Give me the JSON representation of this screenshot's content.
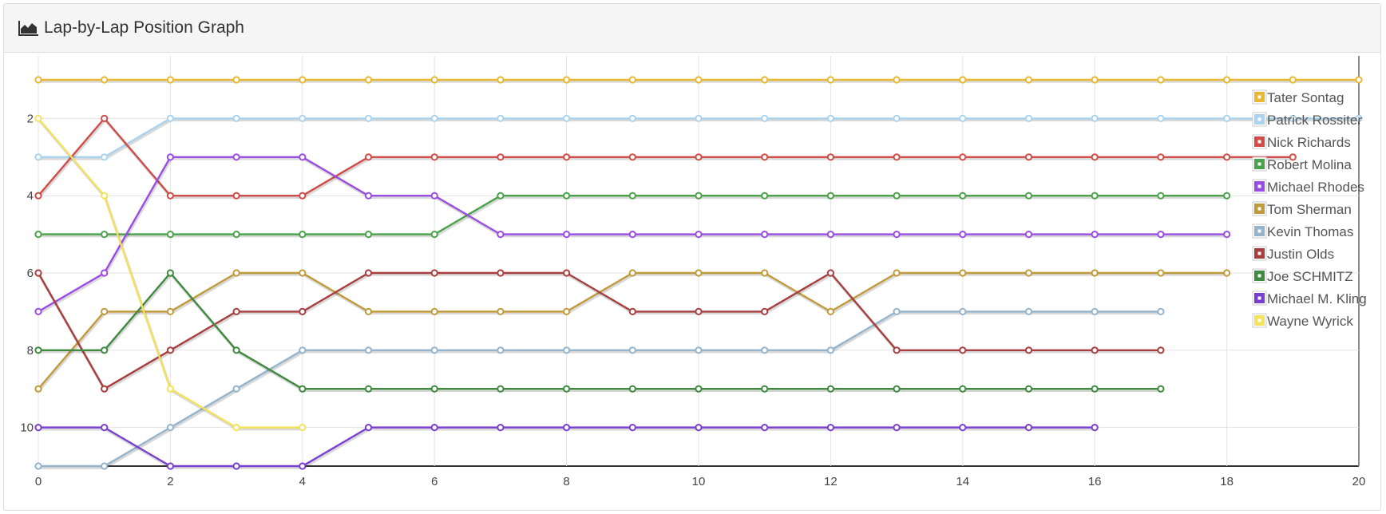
{
  "panel": {
    "title": "Lap-by-Lap Position Graph",
    "title_icon": "area-chart-icon"
  },
  "chart_data": {
    "type": "line",
    "title": "",
    "xlabel": "",
    "ylabel": "",
    "xlim": [
      0,
      20
    ],
    "ylim": [
      1,
      11
    ],
    "y_inverted": true,
    "x_ticks": [
      0,
      2,
      4,
      6,
      8,
      10,
      12,
      14,
      16,
      18,
      20
    ],
    "y_ticks": [
      2,
      4,
      6,
      8,
      10
    ],
    "grid": true,
    "legend_position": "top-right",
    "series": [
      {
        "name": "Tater Sontag",
        "color": "#e8b832",
        "x": [
          0,
          1,
          2,
          3,
          4,
          5,
          6,
          7,
          8,
          9,
          10,
          11,
          12,
          13,
          14,
          15,
          16,
          17,
          18,
          19,
          20
        ],
        "values": [
          1,
          1,
          1,
          1,
          1,
          1,
          1,
          1,
          1,
          1,
          1,
          1,
          1,
          1,
          1,
          1,
          1,
          1,
          1,
          1,
          1
        ]
      },
      {
        "name": "Patrick Rossiter",
        "color": "#a9d3ee",
        "x": [
          0,
          1,
          2,
          3,
          4,
          5,
          6,
          7,
          8,
          9,
          10,
          11,
          12,
          13,
          14,
          15,
          16,
          17,
          18,
          19,
          20
        ],
        "values": [
          3,
          3,
          2,
          2,
          2,
          2,
          2,
          2,
          2,
          2,
          2,
          2,
          2,
          2,
          2,
          2,
          2,
          2,
          2,
          2,
          2
        ]
      },
      {
        "name": "Nick Richards",
        "color": "#cf4c48",
        "x": [
          0,
          1,
          2,
          3,
          4,
          5,
          6,
          7,
          8,
          9,
          10,
          11,
          12,
          13,
          14,
          15,
          16,
          17,
          18,
          19
        ],
        "values": [
          4,
          2,
          4,
          4,
          4,
          3,
          3,
          3,
          3,
          3,
          3,
          3,
          3,
          3,
          3,
          3,
          3,
          3,
          3,
          3
        ]
      },
      {
        "name": "Robert Molina",
        "color": "#4aa24a",
        "x": [
          0,
          1,
          2,
          3,
          4,
          5,
          6,
          7,
          8,
          9,
          10,
          11,
          12,
          13,
          14,
          15,
          16,
          17,
          18
        ],
        "values": [
          5,
          5,
          5,
          5,
          5,
          5,
          5,
          4,
          4,
          4,
          4,
          4,
          4,
          4,
          4,
          4,
          4,
          4,
          4
        ]
      },
      {
        "name": "Michael Rhodes",
        "color": "#9a4de2",
        "x": [
          0,
          1,
          2,
          3,
          4,
          5,
          6,
          7,
          8,
          9,
          10,
          11,
          12,
          13,
          14,
          15,
          16,
          17,
          18
        ],
        "values": [
          7,
          6,
          3,
          3,
          3,
          4,
          4,
          5,
          5,
          5,
          5,
          5,
          5,
          5,
          5,
          5,
          5,
          5,
          5
        ]
      },
      {
        "name": "Tom Sherman",
        "color": "#c19a3a",
        "x": [
          0,
          1,
          2,
          3,
          4,
          5,
          6,
          7,
          8,
          9,
          10,
          11,
          12,
          13,
          14,
          15,
          16,
          17,
          18
        ],
        "values": [
          9,
          7,
          7,
          6,
          6,
          7,
          7,
          7,
          7,
          6,
          6,
          6,
          7,
          6,
          6,
          6,
          6,
          6,
          6
        ]
      },
      {
        "name": "Kevin Thomas",
        "color": "#94b4cd",
        "x": [
          0,
          1,
          2,
          3,
          4,
          5,
          6,
          7,
          8,
          9,
          10,
          11,
          12,
          13,
          14,
          15,
          16,
          17
        ],
        "values": [
          11,
          11,
          10,
          9,
          8,
          8,
          8,
          8,
          8,
          8,
          8,
          8,
          8,
          7,
          7,
          7,
          7,
          7
        ]
      },
      {
        "name": "Justin Olds",
        "color": "#a83e3e",
        "x": [
          0,
          1,
          2,
          3,
          4,
          5,
          6,
          7,
          8,
          9,
          10,
          11,
          12,
          13,
          14,
          15,
          16,
          17
        ],
        "values": [
          6,
          9,
          8,
          7,
          7,
          6,
          6,
          6,
          6,
          7,
          7,
          7,
          6,
          8,
          8,
          8,
          8,
          8
        ]
      },
      {
        "name": "Joe SCHMITZ",
        "color": "#3f8a3f",
        "x": [
          0,
          1,
          2,
          3,
          4,
          5,
          6,
          7,
          8,
          9,
          10,
          11,
          12,
          13,
          14,
          15,
          16,
          17
        ],
        "values": [
          8,
          8,
          6,
          8,
          9,
          9,
          9,
          9,
          9,
          9,
          9,
          9,
          9,
          9,
          9,
          9,
          9,
          9
        ]
      },
      {
        "name": "Michael M. Kling",
        "color": "#7a3fcf",
        "x": [
          0,
          1,
          2,
          3,
          4,
          5,
          6,
          7,
          8,
          9,
          10,
          11,
          12,
          13,
          14,
          15,
          16
        ],
        "values": [
          10,
          10,
          11,
          11,
          11,
          10,
          10,
          10,
          10,
          10,
          10,
          10,
          10,
          10,
          10,
          10,
          10
        ]
      },
      {
        "name": "Wayne Wyrick",
        "color": "#f5e25c",
        "x": [
          0,
          1,
          2,
          3,
          4
        ],
        "values": [
          2,
          4,
          9,
          10,
          10
        ]
      }
    ]
  }
}
